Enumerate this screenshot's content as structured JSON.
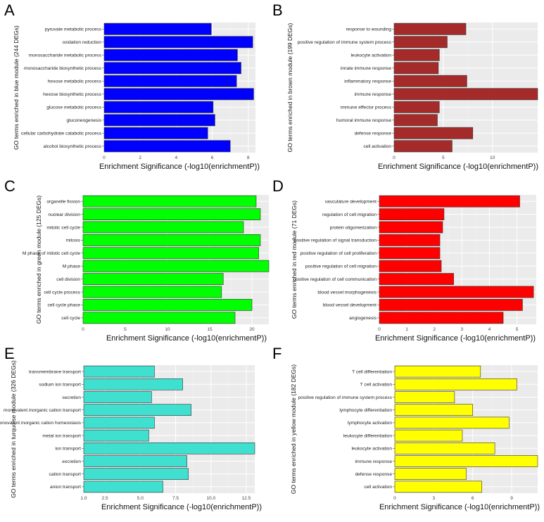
{
  "chart_data": [
    {
      "panel": "A",
      "type": "bar",
      "orientation": "horizontal",
      "color": "#0000ff",
      "categories": [
        "pyruvate metabolic process",
        "oxidation reduction",
        "monosaccharide metabolic process",
        "monosaccharide biosynthetic process",
        "hexose metabolic process",
        "hexose biosynthetic process",
        "glucose metabolic process",
        "gluconeogenesis",
        "cellular carbohydrate catabolic process",
        "alcohol biosynthetic process"
      ],
      "values": [
        5.95,
        8.25,
        7.4,
        7.6,
        7.35,
        8.3,
        6.05,
        6.15,
        5.75,
        7.0
      ],
      "xlim": [
        0,
        8.4
      ],
      "xticks": [
        0,
        2,
        4,
        6,
        8
      ],
      "xtick_labels": [
        "0",
        "2",
        "4",
        "6",
        "8"
      ],
      "xlabel": "Enrichment Significance (-log10(enrichmentP))",
      "ylabel": "GO terms enriched in blue module (244 DEGs)"
    },
    {
      "panel": "B",
      "type": "bar",
      "orientation": "horizontal",
      "color": "#a52a2a",
      "categories": [
        "response to wounding",
        "positive regulation of immune system process",
        "leukocyte activation",
        "innate immune response",
        "inflammatory response",
        "immune response",
        "immune effector process",
        "humoral immune response",
        "defense response",
        "cell activation"
      ],
      "values": [
        7.3,
        5.4,
        4.6,
        4.5,
        7.4,
        14.6,
        4.6,
        4.4,
        8.0,
        5.9
      ],
      "xlim": [
        0,
        14.6
      ],
      "xticks": [
        0,
        5,
        10
      ],
      "xtick_labels": [
        "0",
        "5",
        "10"
      ],
      "xlabel": "Enrichment Significance (-log10(enrichmentP))",
      "ylabel": "GO terms enriched in brown module (199 DEGs)"
    },
    {
      "panel": "C",
      "type": "bar",
      "orientation": "horizontal",
      "color": "#00ff00",
      "categories": [
        "organelle fission",
        "nuclear division",
        "mitotic cell cycle",
        "mitosis",
        "M phase of mitotic cell cycle",
        "M phase",
        "cell division",
        "cell cycle process",
        "cell cycle phase",
        "cell cycle"
      ],
      "values": [
        20.5,
        21.0,
        19.0,
        21.0,
        20.8,
        22.0,
        16.6,
        16.4,
        20.0,
        18.0
      ],
      "xlim": [
        0,
        22.0
      ],
      "xticks": [
        0,
        5,
        10,
        15,
        20
      ],
      "xtick_labels": [
        "0",
        "5",
        "10",
        "15",
        "20"
      ],
      "xlabel": "Enrichment Significance (-log10(enrichmentP))",
      "ylabel": "GO terms enriched in green module (125 DEGs)"
    },
    {
      "panel": "D",
      "type": "bar",
      "orientation": "horizontal",
      "color": "#ff0000",
      "categories": [
        "vasculature development",
        "regulation of cell migration",
        "protein oligomerization",
        "positive regulation of signal transduction",
        "positive regulation of cell proliferation",
        "positive regulation of cell migration",
        "positive regulation of cell communication",
        "blood vessel morphogenesis",
        "blood vessel development",
        "angiogenesis"
      ],
      "values": [
        5.1,
        2.35,
        2.3,
        2.2,
        2.2,
        2.25,
        2.7,
        5.6,
        5.2,
        4.5
      ],
      "xlim": [
        0,
        5.7
      ],
      "xticks": [
        0,
        1,
        2,
        3,
        4,
        5
      ],
      "xtick_labels": [
        "0",
        "1",
        "2",
        "3",
        "4",
        "5"
      ],
      "xlabel": "Enrichment Significance (-log10(enrichmentP))",
      "ylabel": "GO terms enriched in red module (71 DEGs)"
    },
    {
      "panel": "E",
      "type": "bar",
      "orientation": "horizontal",
      "color": "#40e0d0",
      "categories": [
        "transmembrane transport",
        "sodium ion transport",
        "secretion",
        "monovalent inorganic cation transport",
        "monovalent inorganic cation homeostasis",
        "metal ion transport",
        "ion transport",
        "excretion",
        "cation transport",
        "anion transport"
      ],
      "values": [
        6.0,
        8.0,
        5.8,
        8.6,
        6.0,
        5.6,
        13.1,
        8.3,
        8.4,
        6.6
      ],
      "xlim": [
        1.0,
        13.1
      ],
      "xticks": [
        1.0,
        2.5,
        5.0,
        7.5,
        10.0,
        12.5
      ],
      "xtick_labels": [
        "1.0",
        "2.5",
        "5.0",
        "7.5",
        "10.0",
        "12.5"
      ],
      "xlabel": "Enrichment Significance (-log10(enrichmentP))",
      "ylabel": "GO terms enriched in turquoise module (326 DEGs)"
    },
    {
      "panel": "F",
      "type": "bar",
      "orientation": "horizontal",
      "color": "#ffff00",
      "categories": [
        "T cell differentiation",
        "T cell activation",
        "positive regulation of immune system process",
        "lymphocyte differentiation",
        "lymphocyte activation",
        "leukocyte differentiation",
        "leukocyte activation",
        "immune response",
        "defense response",
        "cell activation"
      ],
      "values": [
        6.6,
        9.4,
        4.6,
        6.0,
        8.8,
        5.2,
        7.7,
        11.0,
        5.5,
        6.7
      ],
      "xlim": [
        0,
        11.0
      ],
      "xticks": [
        0,
        3,
        6,
        9
      ],
      "xtick_labels": [
        "0",
        "3",
        "6",
        "9"
      ],
      "xlabel": "Enrichment Significance (-log10(enrichmentP))",
      "ylabel": "GO terms enriched in yellow module (182 DEGs)"
    }
  ]
}
